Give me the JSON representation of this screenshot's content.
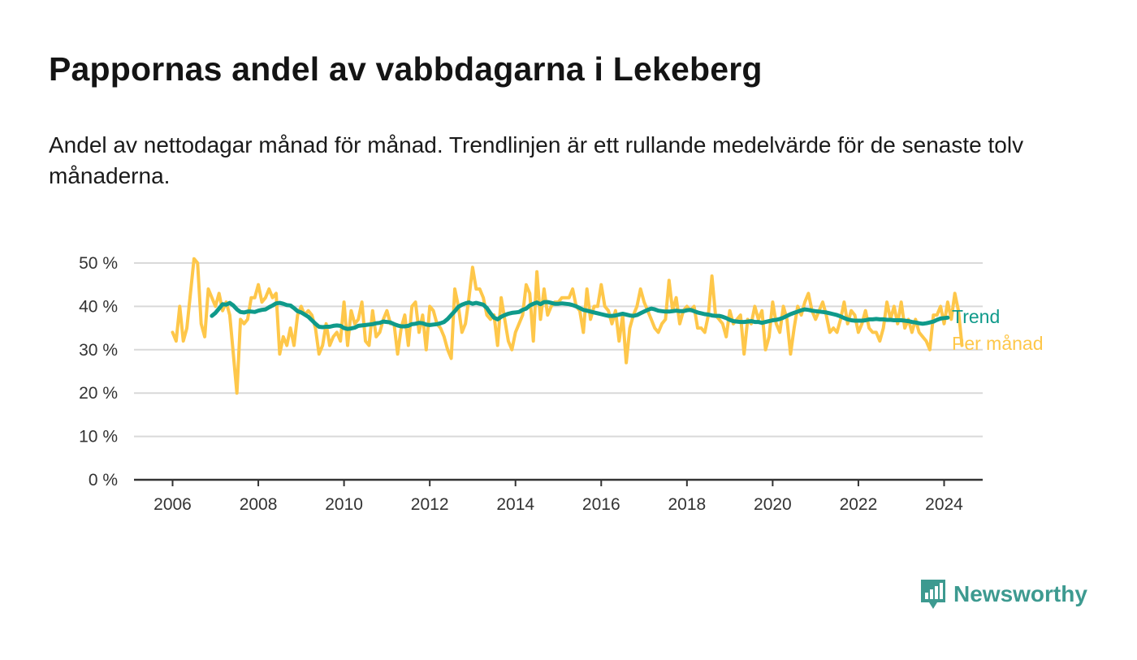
{
  "title": "Pappornas andel av vabbdagarna i Lekeberg",
  "subtitle": "Andel av nettodagar månad för månad. Trendlinjen är ett rullande medelvärde för de senaste tolv månaderna.",
  "brand": {
    "name": "Newsworthy",
    "color": "#3d9a90"
  },
  "colors": {
    "monthly": "#fec74a",
    "trend": "#0f9a8a",
    "grid": "#d9d9d9",
    "axis": "#333333"
  },
  "chart_data": {
    "type": "line",
    "x_start": "2006-01",
    "x_unit": "month",
    "xlim": [
      2005.1,
      2024.9
    ],
    "ylim": [
      0,
      50
    ],
    "y_ticks": [
      0,
      10,
      20,
      30,
      40,
      50
    ],
    "y_tick_labels": [
      "0 %",
      "10 %",
      "20 %",
      "30 %",
      "40 %",
      "50 %"
    ],
    "x_ticks": [
      2006,
      2008,
      2010,
      2012,
      2014,
      2016,
      2018,
      2020,
      2022,
      2024
    ],
    "x_tick_labels": [
      "2006",
      "2008",
      "2010",
      "2012",
      "2014",
      "2016",
      "2018",
      "2020",
      "2022",
      "2024"
    ],
    "grid": "horizontal",
    "legend_placement": "right-end-labels",
    "series": [
      {
        "name": "Per månad",
        "color": "#fec74a",
        "values": [
          34,
          32,
          40,
          32,
          35,
          43,
          51,
          50,
          36,
          33,
          44,
          42,
          40,
          43,
          39,
          41,
          38,
          29,
          20,
          37,
          36,
          37,
          42,
          42,
          45,
          41,
          42,
          44,
          42,
          43,
          29,
          33,
          31,
          35,
          31,
          38,
          40,
          38,
          39,
          38,
          35,
          29,
          31,
          36,
          31,
          33,
          34,
          32,
          41,
          31,
          39,
          36,
          37,
          41,
          32,
          31,
          39,
          33,
          34,
          37,
          39,
          36,
          36,
          29,
          35,
          38,
          31,
          40,
          41,
          34,
          38,
          30,
          40,
          39,
          36,
          35,
          33,
          30,
          28,
          44,
          40,
          34,
          36,
          42,
          49,
          44,
          44,
          42,
          38,
          37,
          38,
          31,
          42,
          37,
          32,
          30,
          34,
          36,
          38,
          45,
          43,
          32,
          48,
          37,
          44,
          38,
          40,
          41,
          41,
          42,
          42,
          42,
          44,
          40,
          39,
          34,
          44,
          37,
          40,
          40,
          45,
          40,
          39,
          36,
          39,
          32,
          38,
          27,
          35,
          38,
          40,
          44,
          41,
          39,
          37,
          35,
          34,
          36,
          37,
          46,
          39,
          42,
          36,
          39,
          40,
          39,
          40,
          35,
          35,
          34,
          38,
          47,
          38,
          37,
          36,
          33,
          39,
          36,
          37,
          38,
          29,
          37,
          36,
          40,
          37,
          39,
          30,
          33,
          41,
          36,
          34,
          40,
          37,
          29,
          35,
          40,
          38,
          41,
          43,
          39,
          37,
          39,
          41,
          38,
          34,
          35,
          34,
          37,
          41,
          36,
          39,
          38,
          34,
          36,
          39,
          35,
          34,
          34,
          32,
          35,
          41,
          37,
          40,
          36,
          41,
          35,
          37,
          34,
          37,
          34,
          33,
          32,
          30,
          38,
          38,
          40,
          36,
          41,
          37,
          43,
          39,
          31
        ]
      },
      {
        "name": "Trend",
        "color": "#0f9a8a",
        "start_index": 11,
        "values": [
          37.8,
          38.5,
          39.5,
          40.5,
          40.4,
          40.8,
          40.2,
          39.3,
          38.7,
          38.6,
          38.8,
          38.8,
          38.7,
          39.0,
          39.2,
          39.3,
          39.8,
          40.2,
          40.7,
          40.8,
          40.6,
          40.3,
          40.2,
          39.6,
          38.9,
          38.6,
          38.1,
          37.6,
          36.8,
          36.0,
          35.3,
          35.2,
          35.3,
          35.3,
          35.5,
          35.6,
          35.5,
          35.0,
          34.8,
          34.9,
          35.1,
          35.5,
          35.6,
          35.7,
          35.8,
          35.9,
          36.1,
          36.2,
          36.5,
          36.4,
          36.3,
          35.9,
          35.6,
          35.4,
          35.4,
          35.5,
          35.9,
          36.0,
          36.2,
          36.1,
          35.8,
          35.7,
          35.8,
          35.9,
          36.1,
          36.4,
          37.1,
          38.0,
          38.9,
          39.9,
          40.4,
          40.7,
          40.9,
          40.6,
          40.8,
          40.6,
          40.4,
          39.6,
          38.4,
          37.4,
          37.0,
          37.6,
          38.0,
          38.3,
          38.5,
          38.6,
          38.7,
          39.2,
          39.5,
          40.2,
          40.6,
          40.9,
          40.5,
          41.0,
          41.0,
          40.8,
          40.6,
          40.6,
          40.7,
          40.6,
          40.5,
          40.3,
          40.0,
          39.6,
          39.2,
          39.0,
          38.8,
          38.6,
          38.4,
          38.2,
          38.0,
          37.8,
          37.8,
          37.9,
          38.1,
          38.3,
          38.1,
          37.9,
          37.8,
          38.0,
          38.4,
          38.8,
          39.2,
          39.5,
          39.3,
          39.0,
          38.9,
          38.8,
          38.8,
          38.9,
          39.0,
          38.9,
          38.9,
          39.1,
          39.2,
          38.9,
          38.6,
          38.4,
          38.2,
          38.1,
          37.9,
          37.8,
          37.8,
          37.6,
          37.3,
          36.9,
          36.6,
          36.5,
          36.4,
          36.4,
          36.5,
          36.6,
          36.4,
          36.4,
          36.2,
          36.4,
          36.6,
          36.8,
          36.9,
          37.1,
          37.4,
          37.8,
          38.2,
          38.5,
          38.8,
          39.1,
          39.3,
          39.2,
          39.0,
          38.9,
          38.8,
          38.7,
          38.6,
          38.4,
          38.2,
          38.0,
          37.7,
          37.3,
          37.0,
          36.8,
          36.7,
          36.7,
          36.7,
          36.8,
          37.0,
          37.0,
          37.1,
          37.0,
          37.0,
          36.9,
          36.9,
          36.8,
          36.8,
          36.8,
          36.7,
          36.6,
          36.4,
          36.3,
          36.1,
          36.0,
          36.1,
          36.3,
          36.5,
          36.9,
          37.2,
          37.3,
          37.4
        ]
      }
    ]
  }
}
